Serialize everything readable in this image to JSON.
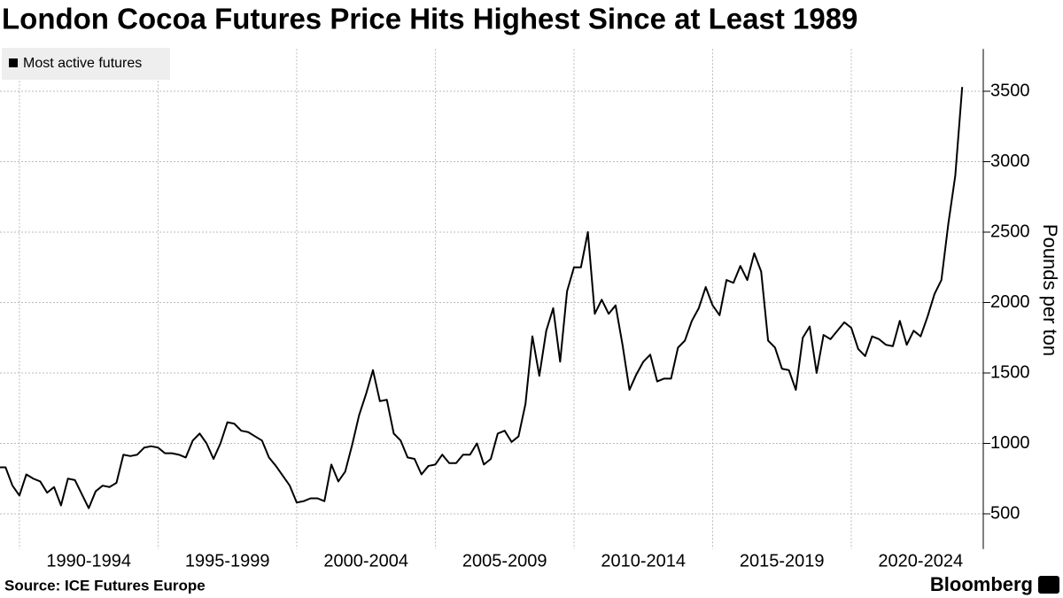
{
  "chart_data": {
    "type": "line",
    "title": "London Cocoa Futures Price Hits Highest Since at Least 1989",
    "y_label": "Pounds per ton",
    "source": "Source: ICE Futures Europe",
    "brand": "Bloomberg",
    "legend": "top-left",
    "grid": true,
    "xlim": [
      1989.3,
      2024.76
    ],
    "xgrid": [
      1990,
      1995,
      2000,
      2005,
      2010,
      2015,
      2020
    ],
    "xticks": [
      {
        "value": 1992.5,
        "label": "1990-1994"
      },
      {
        "value": 1997.5,
        "label": "1995-1999"
      },
      {
        "value": 2002.5,
        "label": "2000-2004"
      },
      {
        "value": 2007.5,
        "label": "2005-2009"
      },
      {
        "value": 2012.5,
        "label": "2010-2014"
      },
      {
        "value": 2017.5,
        "label": "2015-2019"
      },
      {
        "value": 2022.5,
        "label": "2020-2024"
      }
    ],
    "ylim": [
      250,
      3800
    ],
    "yticks": [
      500,
      1000,
      1500,
      2000,
      2500,
      3000,
      3500
    ],
    "x": [
      1989.25,
      1989.5,
      1989.75,
      1990,
      1990.25,
      1990.5,
      1990.75,
      1991,
      1991.25,
      1991.5,
      1991.75,
      1992,
      1992.25,
      1992.5,
      1992.75,
      1993,
      1993.25,
      1993.5,
      1993.75,
      1994,
      1994.25,
      1994.5,
      1994.75,
      1995,
      1995.25,
      1995.5,
      1995.75,
      1996,
      1996.25,
      1996.5,
      1996.75,
      1997,
      1997.25,
      1997.5,
      1997.75,
      1998,
      1998.25,
      1998.5,
      1998.75,
      1999,
      1999.25,
      1999.5,
      1999.75,
      2000,
      2000.25,
      2000.5,
      2000.75,
      2001,
      2001.25,
      2001.5,
      2001.75,
      2002,
      2002.25,
      2002.5,
      2002.75,
      2003,
      2003.25,
      2003.5,
      2003.75,
      2004,
      2004.25,
      2004.5,
      2004.75,
      2005,
      2005.25,
      2005.5,
      2005.75,
      2006,
      2006.25,
      2006.5,
      2006.75,
      2007,
      2007.25,
      2007.5,
      2007.75,
      2008,
      2008.25,
      2008.5,
      2008.75,
      2009,
      2009.25,
      2009.5,
      2009.75,
      2010,
      2010.25,
      2010.5,
      2010.75,
      2011,
      2011.25,
      2011.5,
      2011.75,
      2012,
      2012.25,
      2012.5,
      2012.75,
      2013,
      2013.25,
      2013.5,
      2013.75,
      2014,
      2014.25,
      2014.5,
      2014.75,
      2015,
      2015.25,
      2015.5,
      2015.75,
      2016,
      2016.25,
      2016.5,
      2016.75,
      2017,
      2017.25,
      2017.5,
      2017.75,
      2018,
      2018.25,
      2018.5,
      2018.75,
      2019,
      2019.25,
      2019.5,
      2019.75,
      2020,
      2020.25,
      2020.5,
      2020.75,
      2021,
      2021.25,
      2021.5,
      2021.75,
      2022,
      2022.25,
      2022.5,
      2022.75,
      2023,
      2023.25,
      2023.5,
      2023.75,
      2024
    ],
    "series": [
      {
        "name": "Most active futures",
        "color": "#000000",
        "values": [
          830,
          830,
          700,
          630,
          780,
          750,
          730,
          650,
          690,
          560,
          750,
          740,
          640,
          540,
          660,
          700,
          690,
          720,
          920,
          910,
          920,
          970,
          980,
          970,
          930,
          930,
          920,
          900,
          1020,
          1070,
          1000,
          890,
          1000,
          1150,
          1140,
          1090,
          1080,
          1050,
          1020,
          900,
          840,
          770,
          700,
          580,
          590,
          610,
          610,
          590,
          850,
          730,
          800,
          990,
          1200,
          1350,
          1520,
          1300,
          1310,
          1070,
          1020,
          900,
          890,
          780,
          840,
          850,
          920,
          860,
          860,
          920,
          920,
          1000,
          850,
          890,
          1070,
          1090,
          1010,
          1050,
          1280,
          1760,
          1480,
          1800,
          1960,
          1580,
          2080,
          2250,
          2250,
          2500,
          1920,
          2020,
          1920,
          1980,
          1700,
          1380,
          1490,
          1580,
          1630,
          1440,
          1460,
          1460,
          1680,
          1730,
          1870,
          1960,
          2110,
          1980,
          1910,
          2160,
          2140,
          2260,
          2160,
          2350,
          2220,
          1730,
          1680,
          1530,
          1520,
          1380,
          1750,
          1830,
          1500,
          1770,
          1740,
          1800,
          1860,
          1820,
          1670,
          1620,
          1760,
          1740,
          1700,
          1690,
          1870,
          1700,
          1800,
          1760,
          1900,
          2060,
          2160,
          2560,
          2900,
          3530
        ]
      }
    ]
  }
}
